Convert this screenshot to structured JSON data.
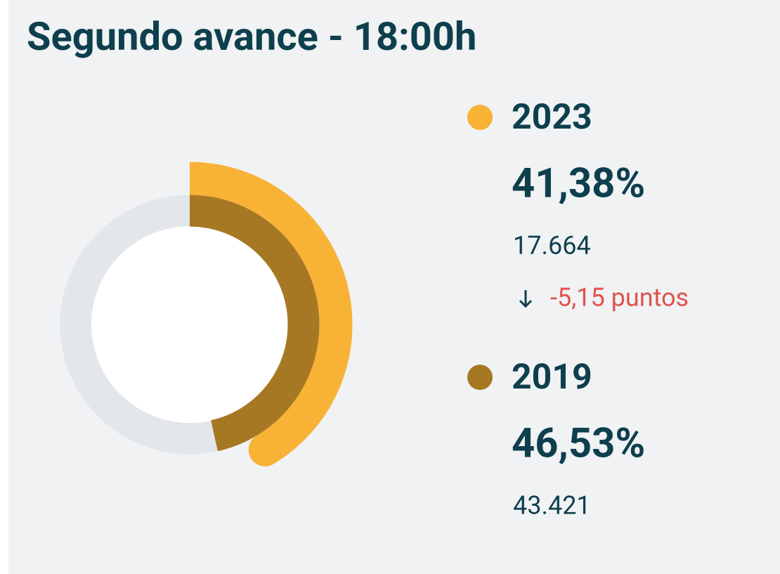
{
  "chart_data": {
    "type": "radial",
    "title": "Segundo avance - 18:00h",
    "series": [
      {
        "name": "2023",
        "color": "#f8b236",
        "values": [
          41.38
        ],
        "value_labels": [
          "41,38%"
        ],
        "count": "17.664",
        "change": "-5,15 puntos"
      },
      {
        "name": "2019",
        "color": "#a77823",
        "values": [
          46.53
        ],
        "value_labels": [
          "46,53%"
        ],
        "count": "43.421"
      }
    ]
  }
}
